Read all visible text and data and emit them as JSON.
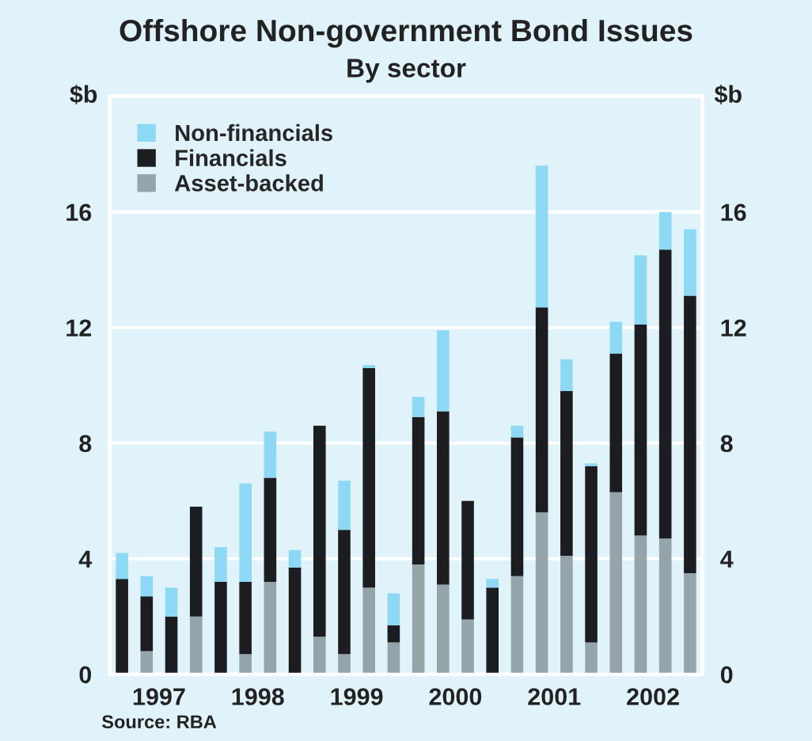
{
  "chart_data": {
    "type": "bar",
    "title": "Offshore Non-government Bond Issues",
    "subtitle": "By sector",
    "ylabel": "$b",
    "y2label": "$b",
    "x": [
      1997.125,
      1997.375,
      1997.625,
      1997.875,
      1998.125,
      1998.375,
      1998.625,
      1998.875,
      1999.125,
      1999.375,
      1999.625,
      1999.875,
      2000.125,
      2000.375,
      2000.625,
      2000.875,
      2001.125,
      2001.375,
      2001.625,
      2001.875,
      2002.125,
      2002.375,
      2002.625,
      2002.875
    ],
    "stacked": true,
    "series": [
      {
        "name": "Asset-backed",
        "color": "#95a3aa",
        "values": [
          0,
          0.8,
          0,
          2.0,
          0,
          0.7,
          3.2,
          0,
          1.3,
          0.7,
          3.0,
          1.1,
          3.8,
          3.1,
          1.9,
          0,
          3.4,
          5.6,
          4.1,
          1.1,
          6.3,
          4.8,
          4.7,
          3.5
        ]
      },
      {
        "name": "Financials",
        "color": "#1c1d21",
        "values": [
          3.3,
          1.9,
          2.0,
          3.8,
          3.2,
          2.5,
          3.6,
          3.7,
          7.3,
          4.3,
          7.6,
          0.6,
          5.1,
          6.0,
          4.1,
          3.0,
          4.8,
          7.1,
          5.7,
          6.1,
          4.8,
          7.3,
          10.0,
          9.6
        ]
      },
      {
        "name": "Non-financials",
        "color": "#8dd8f5",
        "values": [
          0.9,
          0.7,
          1.0,
          0,
          1.2,
          3.4,
          1.6,
          0.6,
          0,
          1.7,
          0.1,
          1.1,
          0.7,
          2.8,
          0,
          0.3,
          0.4,
          4.9,
          1.1,
          0.1,
          1.1,
          2.4,
          1.3,
          2.3
        ]
      }
    ],
    "xlim": [
      1997,
      2003
    ],
    "xticks": [
      {
        "value": 1997.5,
        "label": "1997"
      },
      {
        "value": 1998.5,
        "label": "1998"
      },
      {
        "value": 1999.5,
        "label": "1999"
      },
      {
        "value": 2000.5,
        "label": "2000"
      },
      {
        "value": 2001.5,
        "label": "2001"
      },
      {
        "value": 2002.5,
        "label": "2002"
      }
    ],
    "ylim": [
      0,
      20
    ],
    "yticks": [
      0,
      4,
      8,
      12,
      16
    ],
    "y2lim": [
      0,
      20
    ],
    "y2ticks": [
      0,
      4,
      8,
      12,
      16
    ],
    "grid": "y",
    "legend": "top left",
    "annotations": [
      "Source: RBA"
    ]
  }
}
